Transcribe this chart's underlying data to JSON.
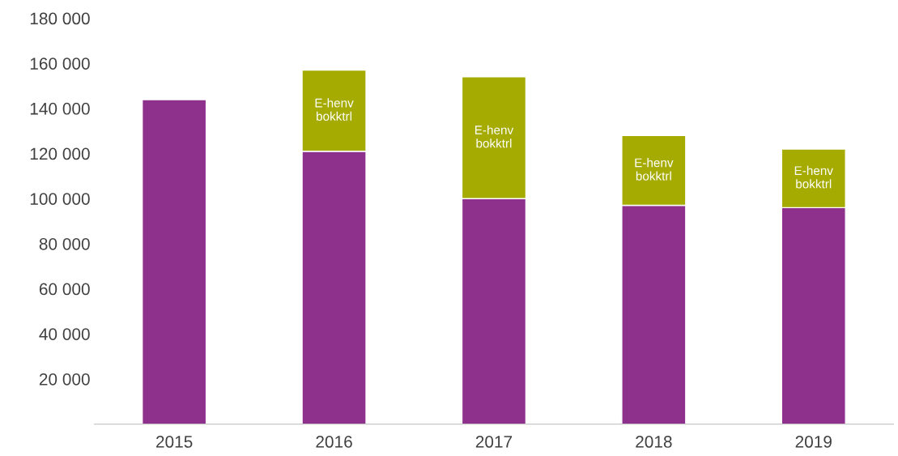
{
  "chart_data": {
    "type": "bar",
    "stacked": true,
    "categories": [
      "2015",
      "2016",
      "2017",
      "2018",
      "2019"
    ],
    "series": [
      {
        "color": "#8e318c",
        "values": [
          144000,
          121000,
          100000,
          97000,
          96000
        ]
      },
      {
        "color": "#a5ab00",
        "values": [
          null,
          36000,
          54000,
          31000,
          26000
        ],
        "value_labels": [
          null,
          "E-henv\nbokktrl",
          "E-henv\nbokktrl",
          "E-henv\nbokktrl",
          "E-henv\nbokktrl"
        ]
      }
    ],
    "ylim": [
      0,
      180000
    ],
    "yticks": [
      {
        "value": 20000,
        "label": "20 000"
      },
      {
        "value": 40000,
        "label": "40 000"
      },
      {
        "value": 60000,
        "label": "60 000"
      },
      {
        "value": 80000,
        "label": "80 000"
      },
      {
        "value": 100000,
        "label": "100 000"
      },
      {
        "value": 120000,
        "label": "120 000"
      },
      {
        "value": 140000,
        "label": "140 000"
      },
      {
        "value": 160000,
        "label": "160 000"
      },
      {
        "value": 180000,
        "label": "180 000"
      }
    ],
    "grid": false,
    "legend": false
  }
}
